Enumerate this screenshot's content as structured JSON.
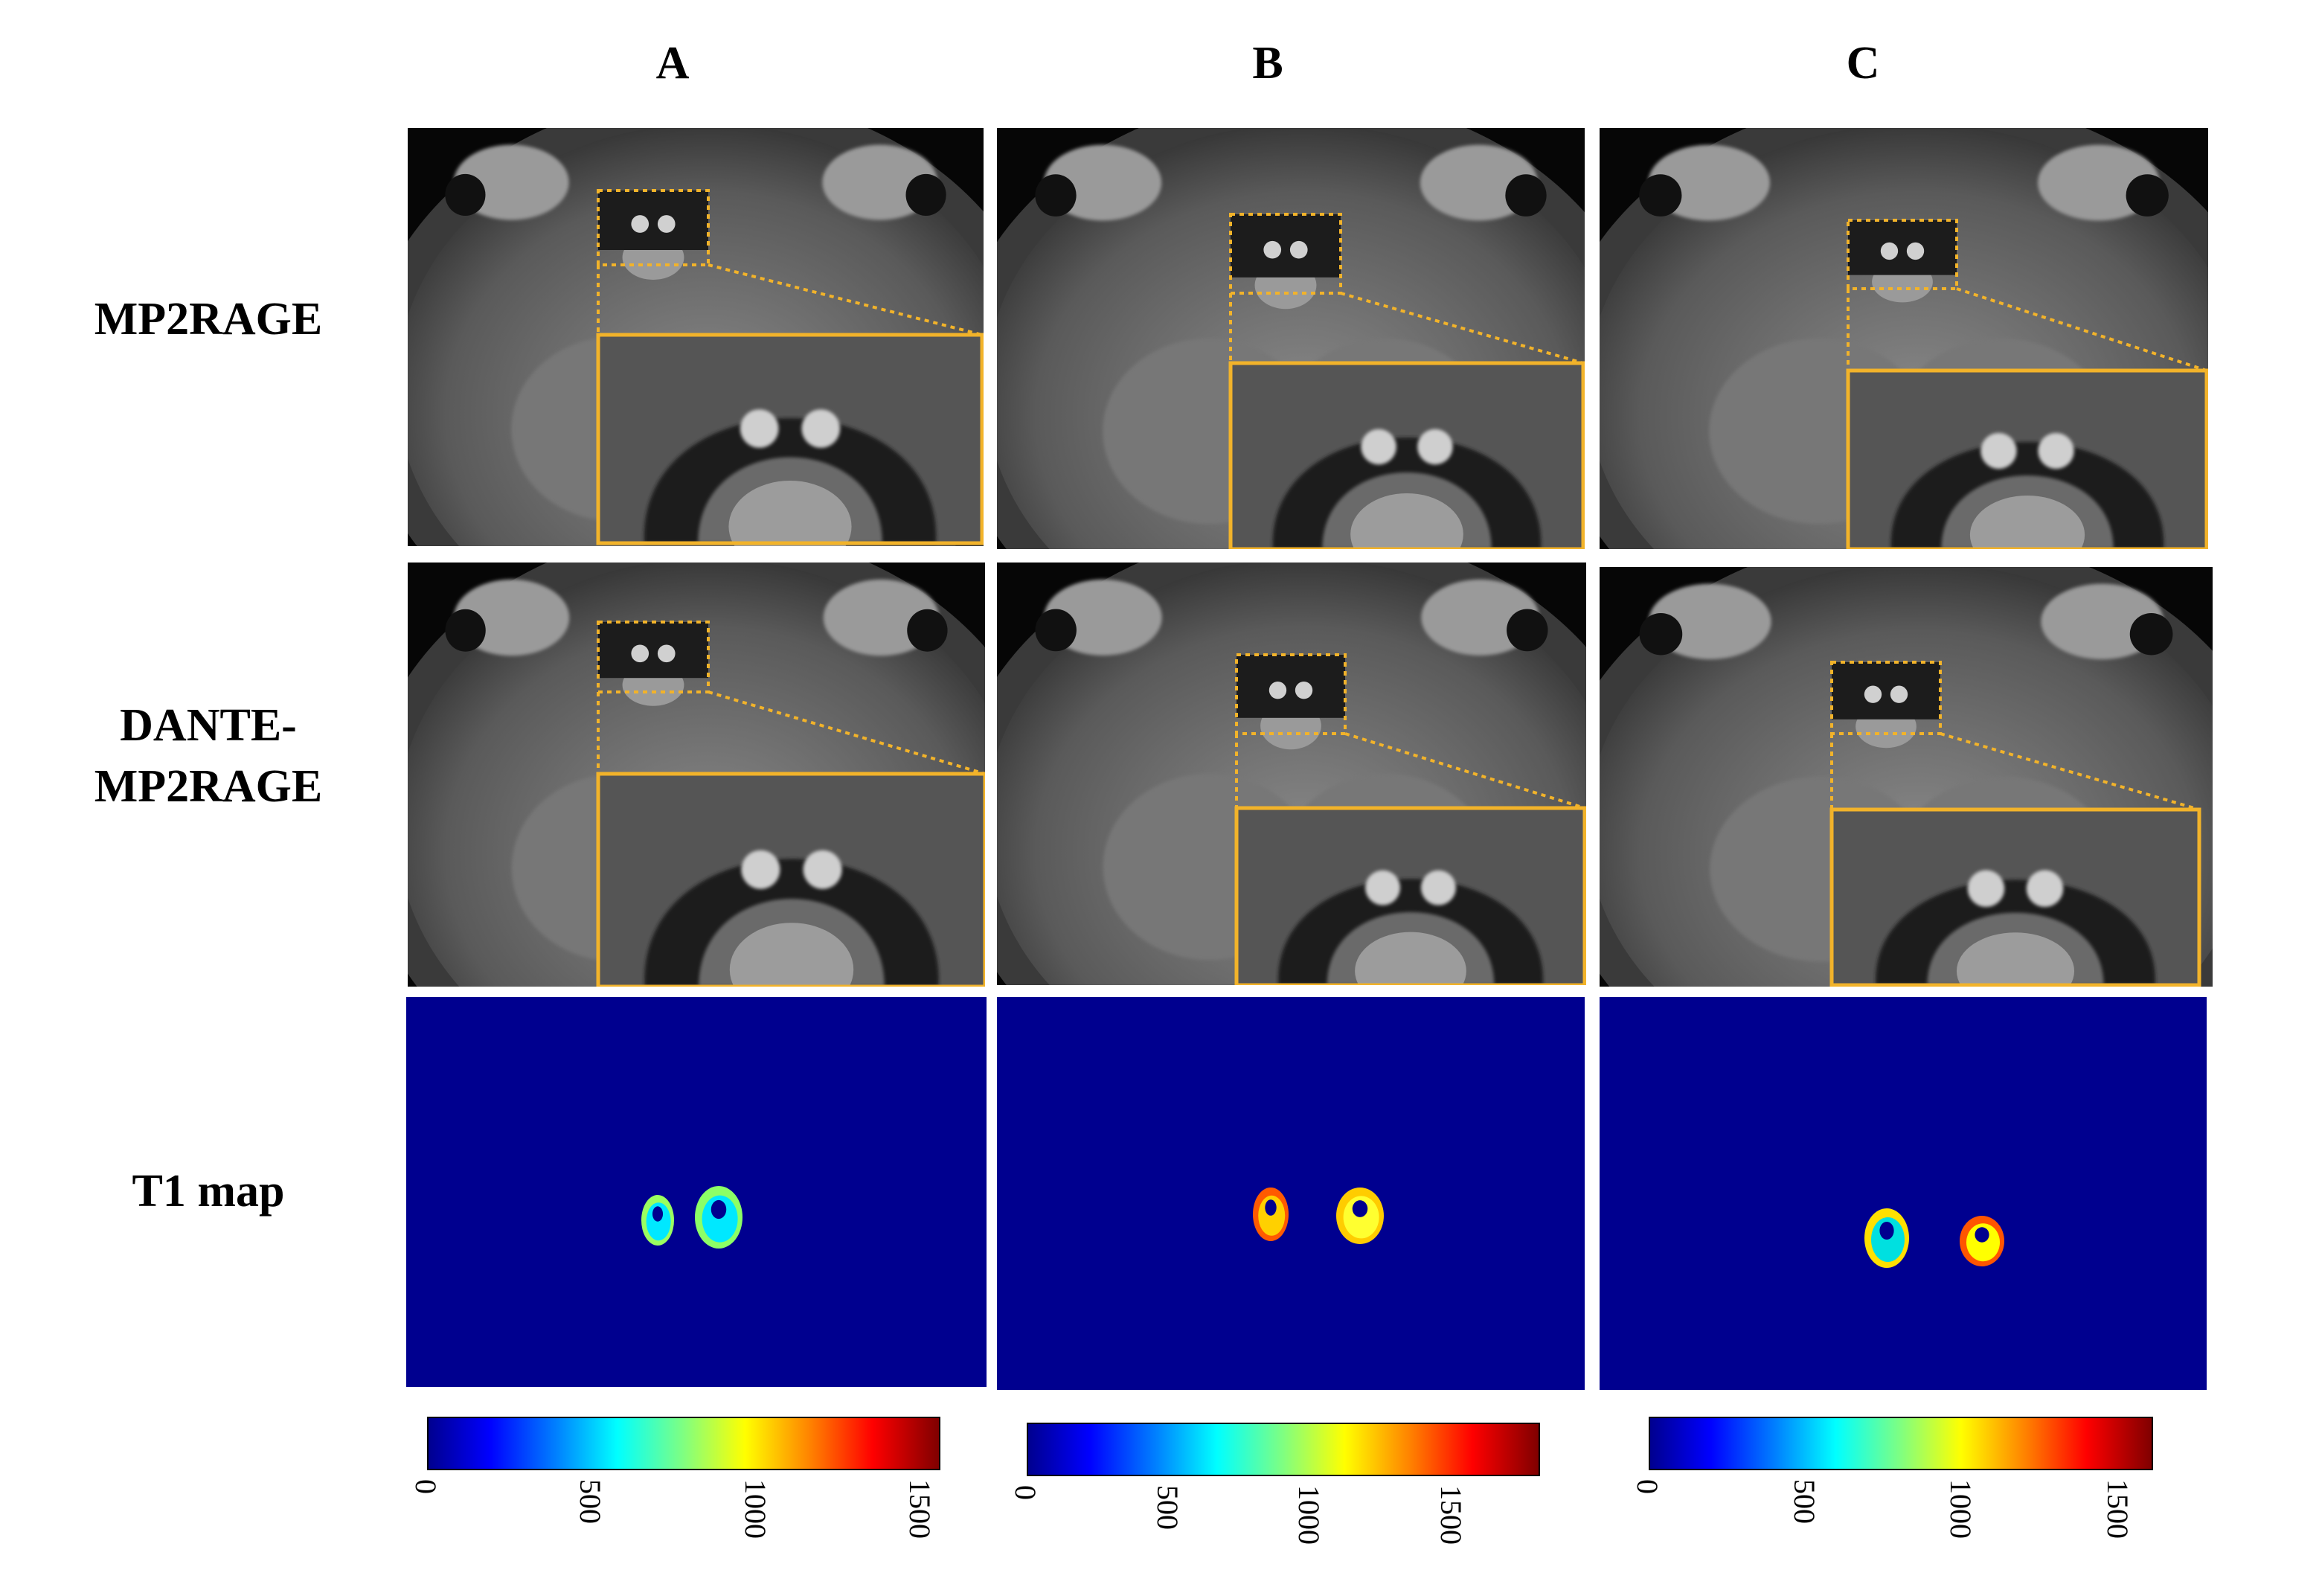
{
  "columns": [
    "A",
    "B",
    "C"
  ],
  "rows": {
    "mp2rage": "MP2RAGE",
    "dante_line1": "DANTE-",
    "dante_line2": "MP2RAGE",
    "t1map": "T1 map"
  },
  "colors": {
    "zoom_box": "#f2b32a",
    "jet_background": "#00008f"
  },
  "colorbars": [
    {
      "max": 1550,
      "ticks": [
        "0",
        "500",
        "1000",
        "1500"
      ]
    },
    {
      "max": 1800,
      "ticks": [
        "0",
        "500",
        "1000",
        "1500"
      ]
    },
    {
      "max": 1600,
      "ticks": [
        "0",
        "500",
        "1000",
        "1500"
      ]
    }
  ]
}
